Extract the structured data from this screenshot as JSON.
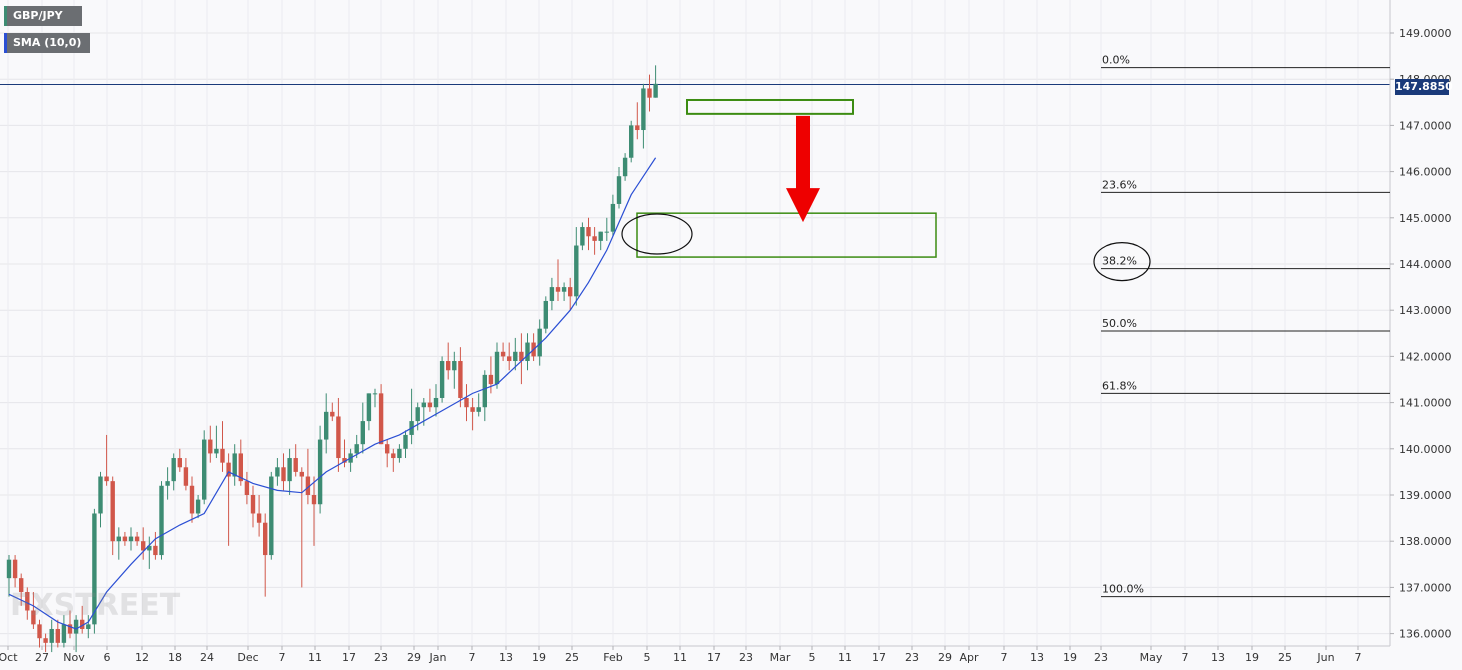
{
  "symbol": "GBP/JPY",
  "indicator": "SMA (10,0)",
  "last_price_label": "147.8850",
  "watermark": "FXSTREET",
  "colors": {
    "bull": "#3d8c73",
    "bear": "#d1574a",
    "sma": "#2b4fd4",
    "zone": "#3c8c12",
    "arrow": "#ee0000",
    "price_line": "#1a3a7a",
    "symbol_accent": "#3d8c73",
    "indicator_accent": "#2b4fd4"
  },
  "chart_data": {
    "type": "candlestick",
    "title": "GBP/JPY",
    "ylim": [
      135.7,
      149.7
    ],
    "y_ticks": [
      "136.0000",
      "137.0000",
      "138.0000",
      "139.0000",
      "140.0000",
      "141.0000",
      "142.0000",
      "143.0000",
      "144.0000",
      "145.0000",
      "146.0000",
      "147.0000",
      "148.0000",
      "149.0000"
    ],
    "x_ticks": [
      "Oct",
      "27",
      "Nov",
      "6",
      "12",
      "18",
      "24",
      "Dec",
      "7",
      "11",
      "17",
      "23",
      "29",
      "Jan",
      "7",
      "13",
      "19",
      "25",
      "Feb",
      "5",
      "11",
      "17",
      "23",
      "Mar",
      "5",
      "11",
      "17",
      "23",
      "29",
      "Apr",
      "7",
      "13",
      "19",
      "23",
      "May",
      "7",
      "13",
      "19",
      "25",
      "Jun",
      "7"
    ],
    "last_price": 147.885,
    "candles": [
      {
        "o": 137.2,
        "h": 137.7,
        "l": 136.8,
        "c": 137.6
      },
      {
        "o": 137.6,
        "h": 137.7,
        "l": 137.0,
        "c": 137.2
      },
      {
        "o": 137.2,
        "h": 137.3,
        "l": 136.6,
        "c": 136.9
      },
      {
        "o": 136.9,
        "h": 137.0,
        "l": 136.3,
        "c": 136.5
      },
      {
        "o": 136.5,
        "h": 136.9,
        "l": 136.1,
        "c": 136.2
      },
      {
        "o": 136.2,
        "h": 136.3,
        "l": 135.7,
        "c": 135.9
      },
      {
        "o": 135.9,
        "h": 136.0,
        "l": 135.6,
        "c": 135.8
      },
      {
        "o": 135.8,
        "h": 136.3,
        "l": 135.6,
        "c": 136.1
      },
      {
        "o": 136.1,
        "h": 136.3,
        "l": 135.7,
        "c": 135.8
      },
      {
        "o": 135.8,
        "h": 136.4,
        "l": 135.7,
        "c": 136.2
      },
      {
        "o": 136.2,
        "h": 136.5,
        "l": 135.9,
        "c": 136.0
      },
      {
        "o": 136.0,
        "h": 136.4,
        "l": 135.6,
        "c": 136.3
      },
      {
        "o": 136.3,
        "h": 136.6,
        "l": 136.0,
        "c": 136.1
      },
      {
        "o": 136.1,
        "h": 136.4,
        "l": 135.9,
        "c": 136.2
      },
      {
        "o": 136.2,
        "h": 138.7,
        "l": 136.0,
        "c": 138.6
      },
      {
        "o": 138.6,
        "h": 139.5,
        "l": 138.3,
        "c": 139.4
      },
      {
        "o": 139.4,
        "h": 140.3,
        "l": 139.2,
        "c": 139.3
      },
      {
        "o": 139.3,
        "h": 139.4,
        "l": 137.7,
        "c": 138.0
      },
      {
        "o": 138.0,
        "h": 138.3,
        "l": 137.6,
        "c": 138.1
      },
      {
        "o": 138.1,
        "h": 138.2,
        "l": 137.9,
        "c": 138.0
      },
      {
        "o": 138.0,
        "h": 138.3,
        "l": 137.8,
        "c": 138.1
      },
      {
        "o": 138.1,
        "h": 138.2,
        "l": 137.9,
        "c": 138.0
      },
      {
        "o": 138.0,
        "h": 138.3,
        "l": 137.6,
        "c": 137.8
      },
      {
        "o": 137.8,
        "h": 138.1,
        "l": 137.4,
        "c": 137.9
      },
      {
        "o": 137.9,
        "h": 138.2,
        "l": 137.6,
        "c": 137.7
      },
      {
        "o": 137.7,
        "h": 139.3,
        "l": 137.6,
        "c": 139.2
      },
      {
        "o": 139.2,
        "h": 139.6,
        "l": 138.9,
        "c": 139.3
      },
      {
        "o": 139.3,
        "h": 139.9,
        "l": 139.1,
        "c": 139.8
      },
      {
        "o": 139.8,
        "h": 140.0,
        "l": 139.5,
        "c": 139.6
      },
      {
        "o": 139.6,
        "h": 139.8,
        "l": 139.1,
        "c": 139.2
      },
      {
        "o": 139.2,
        "h": 139.4,
        "l": 138.4,
        "c": 138.6
      },
      {
        "o": 138.6,
        "h": 139.0,
        "l": 138.5,
        "c": 138.9
      },
      {
        "o": 138.9,
        "h": 140.4,
        "l": 138.8,
        "c": 140.2
      },
      {
        "o": 140.2,
        "h": 140.5,
        "l": 139.7,
        "c": 139.9
      },
      {
        "o": 139.9,
        "h": 140.5,
        "l": 139.8,
        "c": 140.0
      },
      {
        "o": 140.0,
        "h": 140.6,
        "l": 139.5,
        "c": 139.7
      },
      {
        "o": 139.7,
        "h": 139.9,
        "l": 137.9,
        "c": 139.4
      },
      {
        "o": 139.4,
        "h": 140.1,
        "l": 139.2,
        "c": 139.9
      },
      {
        "o": 139.9,
        "h": 140.2,
        "l": 139.2,
        "c": 139.3
      },
      {
        "o": 139.3,
        "h": 139.5,
        "l": 138.8,
        "c": 139.0
      },
      {
        "o": 139.0,
        "h": 139.2,
        "l": 138.3,
        "c": 138.6
      },
      {
        "o": 138.6,
        "h": 139.0,
        "l": 138.1,
        "c": 138.4
      },
      {
        "o": 138.4,
        "h": 138.6,
        "l": 136.8,
        "c": 137.7
      },
      {
        "o": 137.7,
        "h": 139.5,
        "l": 137.6,
        "c": 139.4
      },
      {
        "o": 139.4,
        "h": 139.8,
        "l": 139.2,
        "c": 139.6
      },
      {
        "o": 139.6,
        "h": 139.9,
        "l": 139.1,
        "c": 139.3
      },
      {
        "o": 139.3,
        "h": 140.0,
        "l": 139.0,
        "c": 139.8
      },
      {
        "o": 139.8,
        "h": 140.1,
        "l": 139.4,
        "c": 139.5
      },
      {
        "o": 139.5,
        "h": 139.6,
        "l": 137.0,
        "c": 139.4
      },
      {
        "o": 139.4,
        "h": 140.0,
        "l": 138.8,
        "c": 139.0
      },
      {
        "o": 139.0,
        "h": 139.4,
        "l": 137.9,
        "c": 138.8
      },
      {
        "o": 138.8,
        "h": 140.5,
        "l": 138.6,
        "c": 140.2
      },
      {
        "o": 140.2,
        "h": 141.2,
        "l": 139.9,
        "c": 140.8
      },
      {
        "o": 140.8,
        "h": 141.0,
        "l": 140.6,
        "c": 140.7
      },
      {
        "o": 140.7,
        "h": 141.1,
        "l": 139.5,
        "c": 139.8
      },
      {
        "o": 139.8,
        "h": 140.2,
        "l": 139.6,
        "c": 139.7
      },
      {
        "o": 139.7,
        "h": 140.0,
        "l": 139.5,
        "c": 139.9
      },
      {
        "o": 139.9,
        "h": 140.3,
        "l": 139.8,
        "c": 140.1
      },
      {
        "o": 140.1,
        "h": 141.0,
        "l": 139.9,
        "c": 140.6
      },
      {
        "o": 140.6,
        "h": 141.2,
        "l": 140.4,
        "c": 141.2
      },
      {
        "o": 141.2,
        "h": 141.3,
        "l": 140.9,
        "c": 141.2
      },
      {
        "o": 141.2,
        "h": 141.4,
        "l": 140.1,
        "c": 140.1
      },
      {
        "o": 140.1,
        "h": 140.2,
        "l": 139.6,
        "c": 139.9
      },
      {
        "o": 139.9,
        "h": 140.0,
        "l": 139.5,
        "c": 139.8
      },
      {
        "o": 139.8,
        "h": 140.1,
        "l": 139.7,
        "c": 140.0
      },
      {
        "o": 140.0,
        "h": 140.4,
        "l": 139.8,
        "c": 140.3
      },
      {
        "o": 140.3,
        "h": 141.3,
        "l": 140.1,
        "c": 140.6
      },
      {
        "o": 140.6,
        "h": 141.0,
        "l": 140.4,
        "c": 140.9
      },
      {
        "o": 140.9,
        "h": 141.1,
        "l": 140.5,
        "c": 141.0
      },
      {
        "o": 141.0,
        "h": 141.3,
        "l": 140.8,
        "c": 140.9
      },
      {
        "o": 140.9,
        "h": 141.4,
        "l": 140.7,
        "c": 141.1
      },
      {
        "o": 141.1,
        "h": 142.0,
        "l": 141.0,
        "c": 141.9
      },
      {
        "o": 141.9,
        "h": 142.3,
        "l": 141.5,
        "c": 141.7
      },
      {
        "o": 141.7,
        "h": 142.1,
        "l": 141.3,
        "c": 141.9
      },
      {
        "o": 141.9,
        "h": 142.2,
        "l": 140.9,
        "c": 141.1
      },
      {
        "o": 141.1,
        "h": 141.4,
        "l": 140.6,
        "c": 140.9
      },
      {
        "o": 140.9,
        "h": 141.1,
        "l": 140.4,
        "c": 140.8
      },
      {
        "o": 140.8,
        "h": 141.2,
        "l": 140.7,
        "c": 140.9
      },
      {
        "o": 140.9,
        "h": 141.7,
        "l": 140.6,
        "c": 141.6
      },
      {
        "o": 141.6,
        "h": 142.0,
        "l": 141.2,
        "c": 141.4
      },
      {
        "o": 141.4,
        "h": 142.3,
        "l": 141.3,
        "c": 142.1
      },
      {
        "o": 142.1,
        "h": 142.3,
        "l": 141.9,
        "c": 142.0
      },
      {
        "o": 142.0,
        "h": 142.3,
        "l": 141.7,
        "c": 141.9
      },
      {
        "o": 141.9,
        "h": 142.4,
        "l": 141.7,
        "c": 142.1
      },
      {
        "o": 142.1,
        "h": 142.5,
        "l": 141.4,
        "c": 141.9
      },
      {
        "o": 141.9,
        "h": 142.5,
        "l": 141.7,
        "c": 142.3
      },
      {
        "o": 142.3,
        "h": 142.5,
        "l": 141.9,
        "c": 142.0
      },
      {
        "o": 142.0,
        "h": 142.8,
        "l": 141.8,
        "c": 142.6
      },
      {
        "o": 142.6,
        "h": 143.3,
        "l": 142.5,
        "c": 143.2
      },
      {
        "o": 143.2,
        "h": 143.7,
        "l": 143.0,
        "c": 143.5
      },
      {
        "o": 143.5,
        "h": 144.1,
        "l": 143.2,
        "c": 143.4
      },
      {
        "o": 143.4,
        "h": 143.6,
        "l": 143.2,
        "c": 143.5
      },
      {
        "o": 143.5,
        "h": 143.7,
        "l": 143.0,
        "c": 143.3
      },
      {
        "o": 143.3,
        "h": 144.8,
        "l": 143.1,
        "c": 144.4
      },
      {
        "o": 144.4,
        "h": 144.9,
        "l": 144.3,
        "c": 144.8
      },
      {
        "o": 144.8,
        "h": 145.0,
        "l": 144.3,
        "c": 144.6
      },
      {
        "o": 144.6,
        "h": 144.8,
        "l": 144.2,
        "c": 144.5
      },
      {
        "o": 144.5,
        "h": 144.7,
        "l": 144.3,
        "c": 144.7
      },
      {
        "o": 144.7,
        "h": 145.0,
        "l": 144.5,
        "c": 144.7
      },
      {
        "o": 144.7,
        "h": 145.5,
        "l": 144.6,
        "c": 145.3
      },
      {
        "o": 145.3,
        "h": 146.1,
        "l": 145.2,
        "c": 145.9
      },
      {
        "o": 145.9,
        "h": 146.4,
        "l": 145.8,
        "c": 146.3
      },
      {
        "o": 146.3,
        "h": 147.1,
        "l": 146.2,
        "c": 147.0
      },
      {
        "o": 147.0,
        "h": 147.5,
        "l": 146.7,
        "c": 146.9
      },
      {
        "o": 146.9,
        "h": 147.9,
        "l": 146.5,
        "c": 147.8
      },
      {
        "o": 147.8,
        "h": 148.1,
        "l": 147.3,
        "c": 147.6
      },
      {
        "o": 147.6,
        "h": 148.3,
        "l": 147.6,
        "c": 147.9
      }
    ],
    "sma": [
      {
        "i": 0,
        "v": 136.85
      },
      {
        "i": 4,
        "v": 136.6
      },
      {
        "i": 8,
        "v": 136.25
      },
      {
        "i": 11,
        "v": 136.1
      },
      {
        "i": 13,
        "v": 136.25
      },
      {
        "i": 16,
        "v": 136.9
      },
      {
        "i": 20,
        "v": 137.5
      },
      {
        "i": 24,
        "v": 138.05
      },
      {
        "i": 28,
        "v": 138.35
      },
      {
        "i": 32,
        "v": 138.6
      },
      {
        "i": 36,
        "v": 139.5
      },
      {
        "i": 40,
        "v": 139.25
      },
      {
        "i": 44,
        "v": 139.1
      },
      {
        "i": 48,
        "v": 139.05
      },
      {
        "i": 52,
        "v": 139.5
      },
      {
        "i": 56,
        "v": 139.8
      },
      {
        "i": 60,
        "v": 140.1
      },
      {
        "i": 64,
        "v": 140.3
      },
      {
        "i": 68,
        "v": 140.6
      },
      {
        "i": 72,
        "v": 140.9
      },
      {
        "i": 76,
        "v": 141.2
      },
      {
        "i": 80,
        "v": 141.4
      },
      {
        "i": 84,
        "v": 141.9
      },
      {
        "i": 88,
        "v": 142.4
      },
      {
        "i": 92,
        "v": 143.0
      },
      {
        "i": 95,
        "v": 143.6
      },
      {
        "i": 98,
        "v": 144.3
      },
      {
        "i": 100,
        "v": 144.9
      },
      {
        "i": 102,
        "v": 145.5
      },
      {
        "i": 104,
        "v": 145.9
      },
      {
        "i": 106,
        "v": 146.3
      }
    ],
    "fibonacci": [
      {
        "label": "0.0%",
        "value": 148.25
      },
      {
        "label": "23.6%",
        "value": 145.55
      },
      {
        "label": "38.2%",
        "value": 143.9
      },
      {
        "label": "50.0%",
        "value": 142.55
      },
      {
        "label": "61.8%",
        "value": 141.2
      },
      {
        "label": "100.0%",
        "value": 136.8
      }
    ],
    "annotations": {
      "resistance_zone": [
        147.25,
        147.55
      ],
      "target_zone": [
        144.15,
        145.1
      ],
      "arrow_from": 147.25,
      "arrow_to": 144.95,
      "circle_fib": "38.2%"
    }
  }
}
